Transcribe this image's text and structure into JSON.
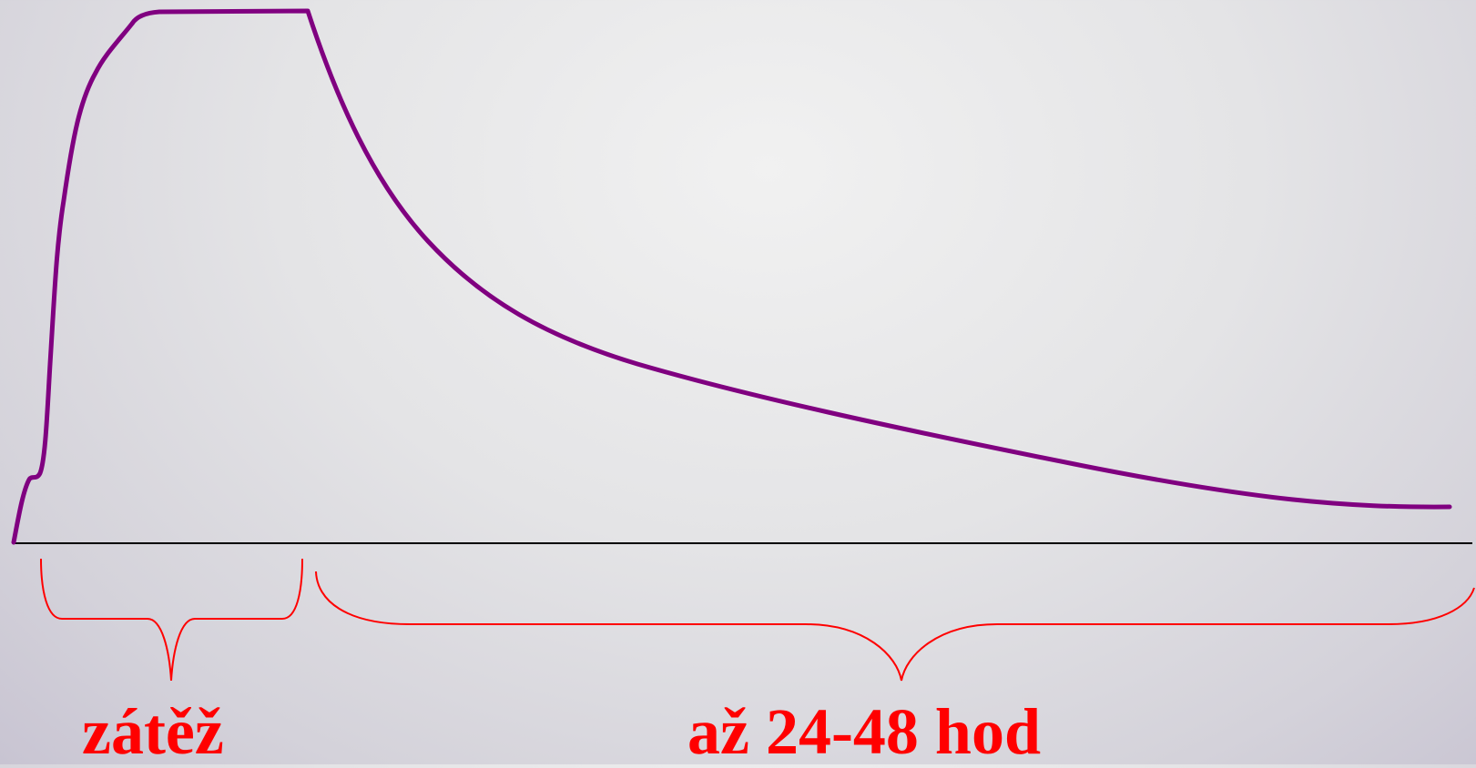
{
  "colors": {
    "curve": "#800080",
    "brace": "#ff0000",
    "label": "#ff0000",
    "axis": "#000000"
  },
  "labels": {
    "load": "zátěž",
    "recovery": "až 24-48 hod"
  }
}
